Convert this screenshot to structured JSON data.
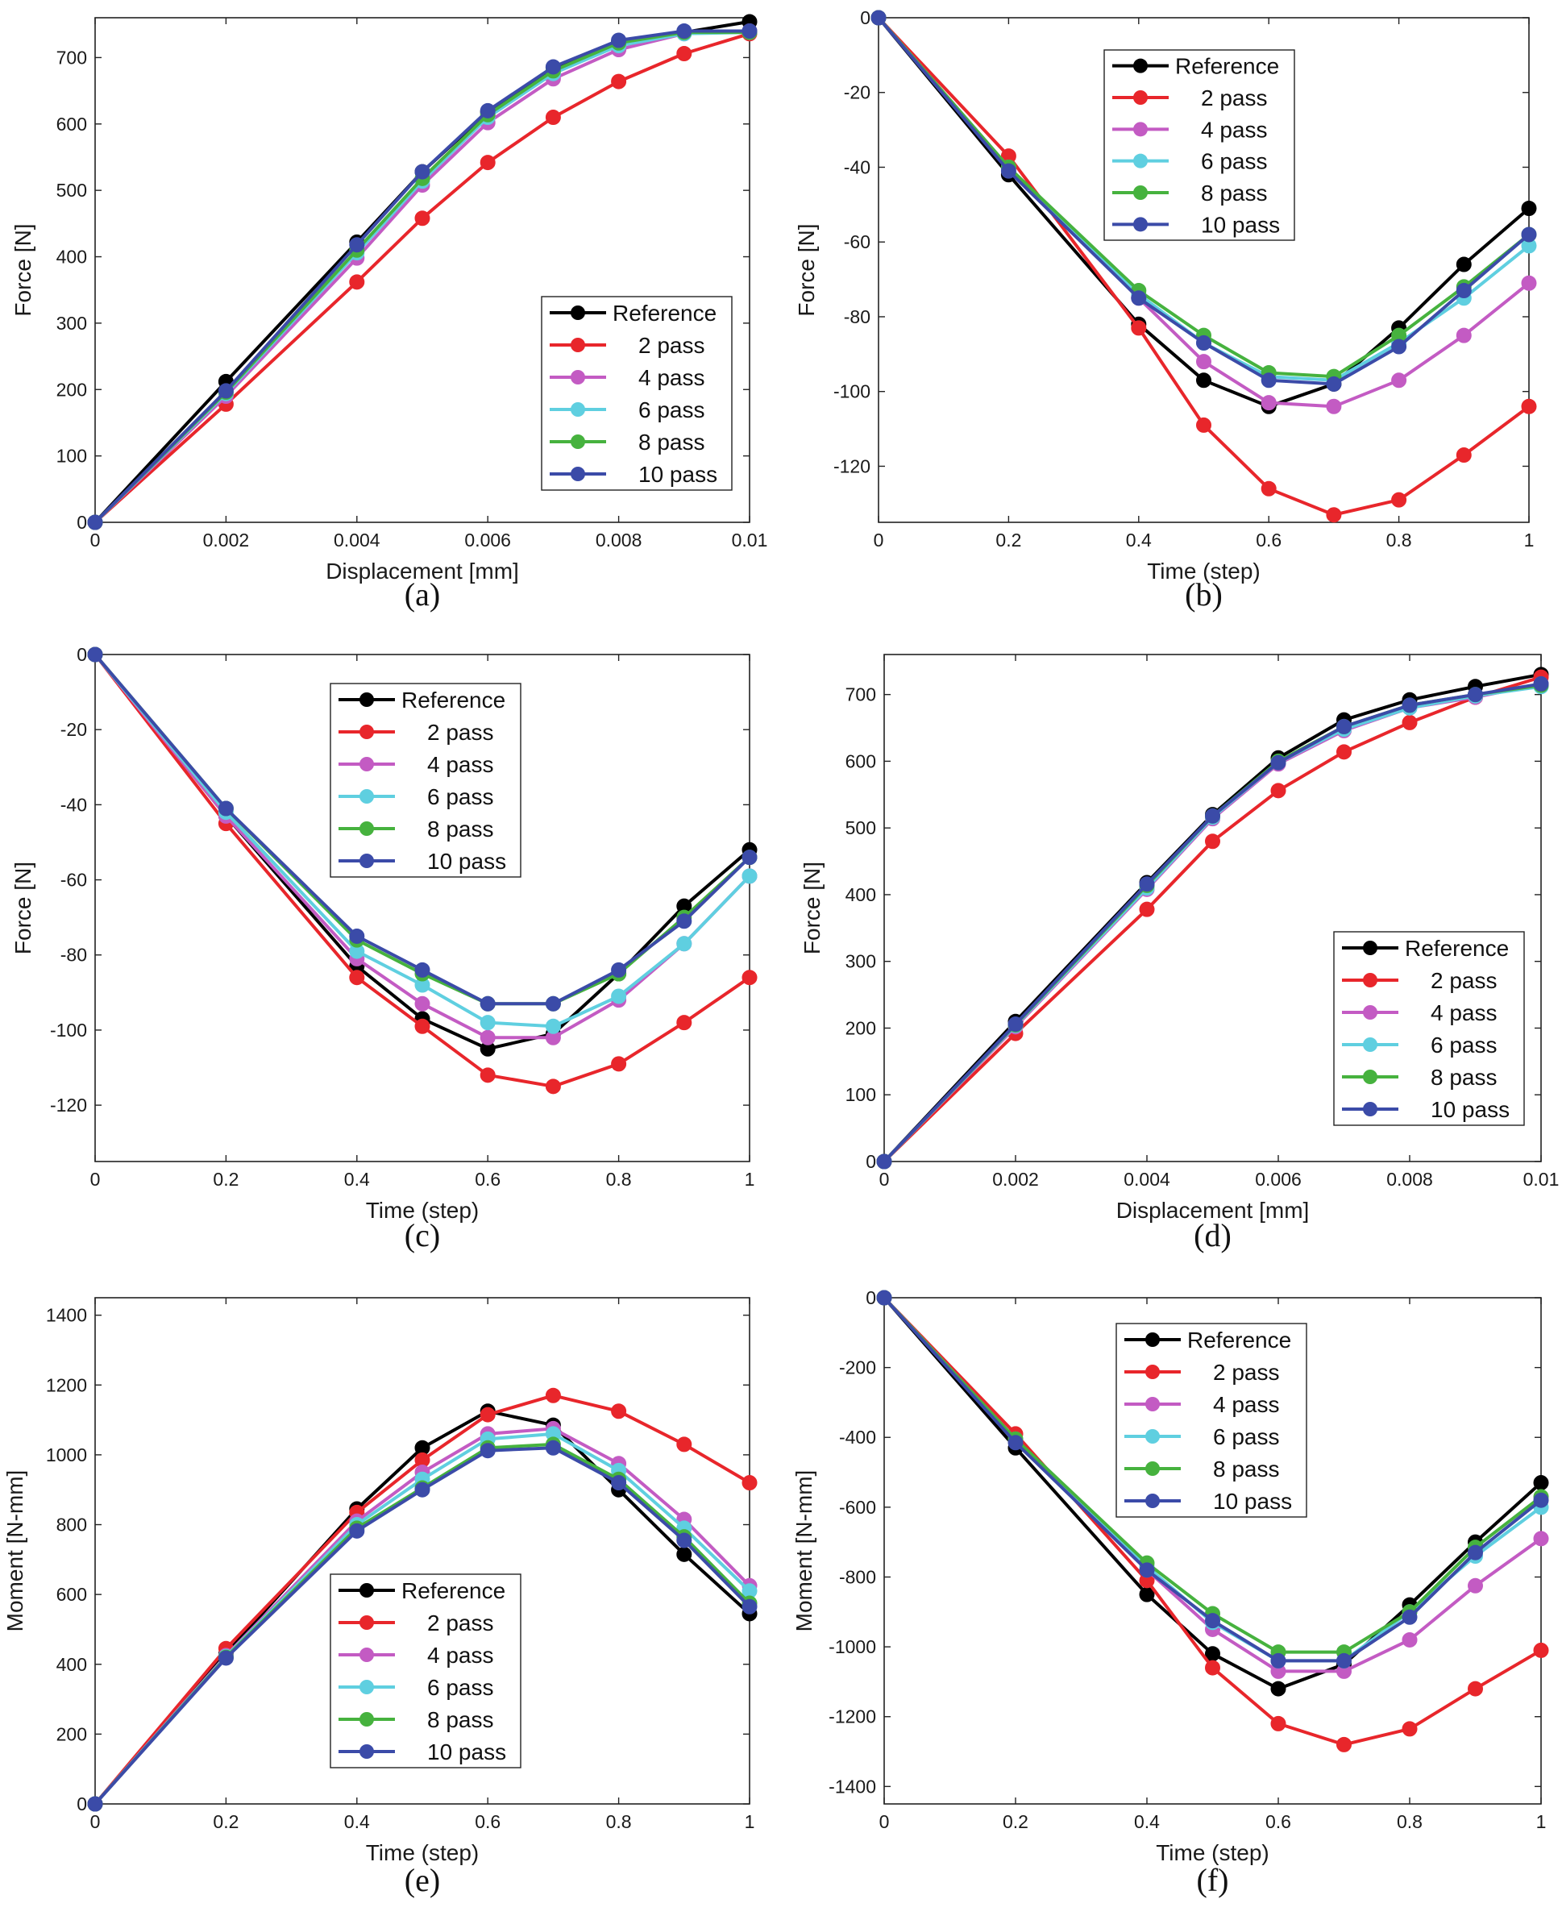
{
  "chart_data": [
    {
      "id": "a",
      "caption": "(a)",
      "type": "line",
      "xlabel": "Displacement [mm]",
      "ylabel": "Force [N]",
      "xlim": [
        0,
        0.01
      ],
      "ylim": [
        0,
        760
      ],
      "xticks": [
        0,
        0.002,
        0.004,
        0.006,
        0.008,
        0.01
      ],
      "xtick_labels": [
        "0",
        "0.002",
        "0.004",
        "0.006",
        "0.008",
        "0.01"
      ],
      "yticks": [
        0,
        100,
        200,
        300,
        400,
        500,
        600,
        700
      ],
      "ytick_labels": [
        "0",
        "100",
        "200",
        "300",
        "400",
        "500",
        "600",
        "700"
      ],
      "legend_position": "bottom-right",
      "x": [
        0,
        0.002,
        0.004,
        0.005,
        0.006,
        0.007,
        0.008,
        0.009,
        0.01
      ],
      "series": [
        {
          "name": "Reference",
          "color": "#000000",
          "values": [
            0,
            212,
            422,
            528,
            618,
            685,
            724,
            738,
            754
          ]
        },
        {
          "name": "2 pass",
          "color": "#e8262b",
          "values": [
            0,
            178,
            362,
            458,
            542,
            610,
            664,
            706,
            736
          ]
        },
        {
          "name": "4 pass",
          "color": "#c35bc3",
          "values": [
            0,
            190,
            398,
            508,
            602,
            668,
            712,
            736,
            740
          ]
        },
        {
          "name": "6 pass",
          "color": "#5fcfe0",
          "values": [
            0,
            194,
            406,
            514,
            610,
            676,
            718,
            736,
            738
          ]
        },
        {
          "name": "8 pass",
          "color": "#46b23e",
          "values": [
            0,
            196,
            410,
            518,
            614,
            680,
            722,
            738,
            738
          ]
        },
        {
          "name": "10 pass",
          "color": "#3b4ba8",
          "values": [
            0,
            198,
            418,
            528,
            620,
            686,
            726,
            740,
            740
          ]
        }
      ]
    },
    {
      "id": "b",
      "caption": "(b)",
      "type": "line",
      "xlabel": "Time (step)",
      "ylabel": "Force [N]",
      "xlim": [
        0,
        1
      ],
      "ylim": [
        -135,
        0
      ],
      "xticks": [
        0,
        0.2,
        0.4,
        0.6,
        0.8,
        1
      ],
      "xtick_labels": [
        "0",
        "0.2",
        "0.4",
        "0.6",
        "0.8",
        "1"
      ],
      "yticks": [
        -120,
        -100,
        -80,
        -60,
        -40,
        -20,
        0
      ],
      "ytick_labels": [
        "-120",
        "-100",
        "-80",
        "-60",
        "-40",
        "-20",
        "0"
      ],
      "legend_position": "top-left",
      "x": [
        0,
        0.2,
        0.4,
        0.5,
        0.6,
        0.7,
        0.8,
        0.9,
        1
      ],
      "series": [
        {
          "name": "Reference",
          "color": "#000000",
          "values": [
            0,
            -42,
            -82,
            -97,
            -104,
            -98,
            -83,
            -66,
            -51
          ]
        },
        {
          "name": "2 pass",
          "color": "#e8262b",
          "values": [
            0,
            -37,
            -83,
            -109,
            -126,
            -133,
            -129,
            -117,
            -104
          ]
        },
        {
          "name": "4 pass",
          "color": "#c35bc3",
          "values": [
            0,
            -40,
            -75,
            -92,
            -103,
            -104,
            -97,
            -85,
            -71
          ]
        },
        {
          "name": "6 pass",
          "color": "#5fcfe0",
          "values": [
            0,
            -40,
            -74,
            -87,
            -96,
            -97,
            -87,
            -75,
            -61
          ]
        },
        {
          "name": "8 pass",
          "color": "#46b23e",
          "values": [
            0,
            -40,
            -73,
            -85,
            -95,
            -96,
            -85,
            -72,
            -58
          ]
        },
        {
          "name": "10 pass",
          "color": "#3b4ba8",
          "values": [
            0,
            -41,
            -75,
            -87,
            -97,
            -98,
            -88,
            -73,
            -58
          ]
        }
      ]
    },
    {
      "id": "c",
      "caption": "(c)",
      "type": "line",
      "xlabel": "Time (step)",
      "ylabel": "Force [N]",
      "xlim": [
        0,
        1
      ],
      "ylim": [
        -135,
        0
      ],
      "xticks": [
        0,
        0.2,
        0.4,
        0.6,
        0.8,
        1
      ],
      "xtick_labels": [
        "0",
        "0.2",
        "0.4",
        "0.6",
        "0.8",
        "1"
      ],
      "yticks": [
        -120,
        -100,
        -80,
        -60,
        -40,
        -20,
        0
      ],
      "ytick_labels": [
        "-120",
        "-100",
        "-80",
        "-60",
        "-40",
        "-20",
        "0"
      ],
      "legend_position": "top-center",
      "x": [
        0,
        0.2,
        0.4,
        0.5,
        0.6,
        0.7,
        0.8,
        0.9,
        1
      ],
      "series": [
        {
          "name": "Reference",
          "color": "#000000",
          "values": [
            0,
            -43,
            -83,
            -97,
            -105,
            -101,
            -85,
            -67,
            -52
          ]
        },
        {
          "name": "2 pass",
          "color": "#e8262b",
          "values": [
            0,
            -45,
            -86,
            -99,
            -112,
            -115,
            -109,
            -98,
            -86
          ]
        },
        {
          "name": "4 pass",
          "color": "#c35bc3",
          "values": [
            0,
            -43,
            -81,
            -93,
            -102,
            -102,
            -92,
            -77,
            -59
          ]
        },
        {
          "name": "6 pass",
          "color": "#5fcfe0",
          "values": [
            0,
            -42,
            -79,
            -88,
            -98,
            -99,
            -91,
            -77,
            -59
          ]
        },
        {
          "name": "8 pass",
          "color": "#46b23e",
          "values": [
            0,
            -41,
            -76,
            -85,
            -93,
            -93,
            -85,
            -70,
            -54
          ]
        },
        {
          "name": "10 pass",
          "color": "#3b4ba8",
          "values": [
            0,
            -41,
            -75,
            -84,
            -93,
            -93,
            -84,
            -71,
            -54
          ]
        }
      ]
    },
    {
      "id": "d",
      "caption": "(d)",
      "type": "line",
      "xlabel": "Displacement [mm]",
      "ylabel": "Force [N]",
      "xlim": [
        0,
        0.01
      ],
      "ylim": [
        0,
        760
      ],
      "xticks": [
        0,
        0.002,
        0.004,
        0.006,
        0.008,
        0.01
      ],
      "xtick_labels": [
        "0",
        "0.002",
        "0.004",
        "0.006",
        "0.008",
        "0.01"
      ],
      "yticks": [
        0,
        100,
        200,
        300,
        400,
        500,
        600,
        700
      ],
      "ytick_labels": [
        "0",
        "100",
        "200",
        "300",
        "400",
        "500",
        "600",
        "700"
      ],
      "legend_position": "bottom-right",
      "x": [
        0,
        0.002,
        0.004,
        0.005,
        0.006,
        0.007,
        0.008,
        0.009,
        0.01
      ],
      "series": [
        {
          "name": "Reference",
          "color": "#000000",
          "values": [
            0,
            210,
            418,
            520,
            605,
            662,
            692,
            712,
            730
          ]
        },
        {
          "name": "2 pass",
          "color": "#e8262b",
          "values": [
            0,
            192,
            378,
            480,
            556,
            614,
            658,
            696,
            726
          ]
        },
        {
          "name": "4 pass",
          "color": "#c35bc3",
          "values": [
            0,
            202,
            408,
            514,
            596,
            646,
            680,
            696,
            716
          ]
        },
        {
          "name": "6 pass",
          "color": "#5fcfe0",
          "values": [
            0,
            204,
            410,
            516,
            598,
            648,
            680,
            698,
            712
          ]
        },
        {
          "name": "8 pass",
          "color": "#46b23e",
          "values": [
            0,
            205,
            414,
            518,
            600,
            652,
            684,
            700,
            714
          ]
        },
        {
          "name": "10 pass",
          "color": "#3b4ba8",
          "values": [
            0,
            206,
            416,
            518,
            598,
            652,
            684,
            700,
            716
          ]
        }
      ]
    },
    {
      "id": "e",
      "caption": "(e)",
      "type": "line",
      "xlabel": "Time (step)",
      "ylabel": "Moment [N-mm]",
      "xlim": [
        0,
        1
      ],
      "ylim": [
        0,
        1450
      ],
      "xticks": [
        0,
        0.2,
        0.4,
        0.6,
        0.8,
        1
      ],
      "xtick_labels": [
        "0",
        "0.2",
        "0.4",
        "0.6",
        "0.8",
        "1"
      ],
      "yticks": [
        0,
        200,
        400,
        600,
        800,
        1000,
        1200,
        1400
      ],
      "ytick_labels": [
        "0",
        "200",
        "400",
        "600",
        "800",
        "1000",
        "1200",
        "1400"
      ],
      "legend_position": "bottom-center",
      "x": [
        0,
        0.2,
        0.4,
        0.5,
        0.6,
        0.7,
        0.8,
        0.9,
        1
      ],
      "series": [
        {
          "name": "Reference",
          "color": "#000000",
          "values": [
            0,
            430,
            845,
            1020,
            1125,
            1085,
            900,
            715,
            545
          ]
        },
        {
          "name": "2 pass",
          "color": "#e8262b",
          "values": [
            0,
            445,
            835,
            985,
            1115,
            1170,
            1125,
            1030,
            920
          ]
        },
        {
          "name": "4 pass",
          "color": "#c35bc3",
          "values": [
            0,
            425,
            810,
            950,
            1060,
            1075,
            975,
            815,
            625
          ]
        },
        {
          "name": "6 pass",
          "color": "#5fcfe0",
          "values": [
            0,
            422,
            800,
            930,
            1045,
            1060,
            955,
            790,
            610
          ]
        },
        {
          "name": "8 pass",
          "color": "#46b23e",
          "values": [
            0,
            420,
            790,
            905,
            1020,
            1030,
            930,
            765,
            575
          ]
        },
        {
          "name": "10 pass",
          "color": "#3b4ba8",
          "values": [
            0,
            418,
            782,
            900,
            1012,
            1020,
            920,
            755,
            565
          ]
        }
      ]
    },
    {
      "id": "f",
      "caption": "(f)",
      "type": "line",
      "xlabel": "Time (step)",
      "ylabel": "Moment [N-mm]",
      "xlim": [
        0,
        1
      ],
      "ylim": [
        -1450,
        0
      ],
      "xticks": [
        0,
        0.2,
        0.4,
        0.6,
        0.8,
        1
      ],
      "xtick_labels": [
        "0",
        "0.2",
        "0.4",
        "0.6",
        "0.8",
        "1"
      ],
      "yticks": [
        -1400,
        -1200,
        -1000,
        -800,
        -600,
        -400,
        -200,
        0
      ],
      "ytick_labels": [
        "-1400",
        "-1200",
        "-1000",
        "-800",
        "-600",
        "-400",
        "-200",
        "0"
      ],
      "legend_position": "top-left",
      "x": [
        0,
        0.2,
        0.4,
        0.5,
        0.6,
        0.7,
        0.8,
        0.9,
        1
      ],
      "series": [
        {
          "name": "Reference",
          "color": "#000000",
          "values": [
            0,
            -430,
            -850,
            -1020,
            -1120,
            -1050,
            -880,
            -700,
            -530
          ]
        },
        {
          "name": "2 pass",
          "color": "#e8262b",
          "values": [
            0,
            -390,
            -810,
            -1060,
            -1220,
            -1280,
            -1235,
            -1120,
            -1010
          ]
        },
        {
          "name": "4 pass",
          "color": "#c35bc3",
          "values": [
            0,
            -410,
            -780,
            -950,
            -1070,
            -1070,
            -980,
            -825,
            -690
          ]
        },
        {
          "name": "6 pass",
          "color": "#5fcfe0",
          "values": [
            0,
            -405,
            -770,
            -930,
            -1040,
            -1040,
            -900,
            -740,
            -600
          ]
        },
        {
          "name": "8 pass",
          "color": "#46b23e",
          "values": [
            0,
            -405,
            -760,
            -905,
            -1015,
            -1015,
            -900,
            -715,
            -570
          ]
        },
        {
          "name": "10 pass",
          "color": "#3b4ba8",
          "values": [
            0,
            -415,
            -780,
            -925,
            -1040,
            -1040,
            -915,
            -730,
            -580
          ]
        }
      ]
    }
  ]
}
